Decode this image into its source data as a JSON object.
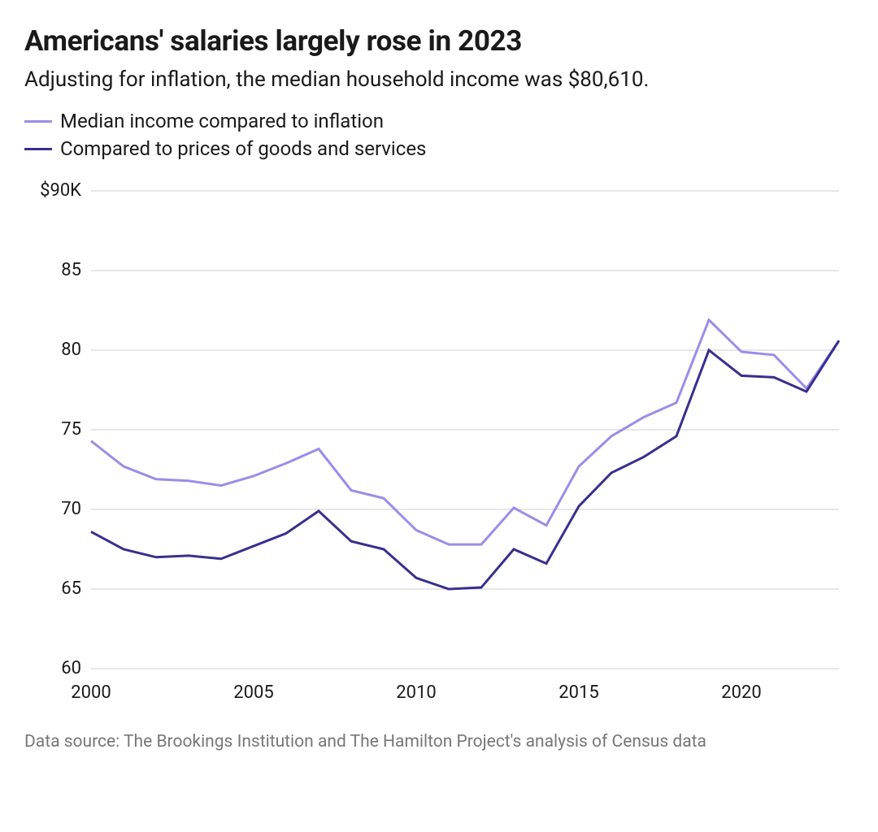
{
  "title": "Americans' salaries largely rose in 2023",
  "subtitle": "Adjusting for inflation, the median household income was $80,610.",
  "source": "Data source: The Brookings Institution and The Hamilton Project's analysis of Census data",
  "chart": {
    "type": "line",
    "background_color": "#ffffff",
    "grid_color": "#cfcfcf",
    "text_color": "#1a1a1a",
    "title_fontsize": 35,
    "subtitle_fontsize": 26,
    "tick_fontsize": 22,
    "legend_fontsize": 24,
    "line_width": 3,
    "x": {
      "min": 2000,
      "max": 2023,
      "ticks": [
        2000,
        2005,
        2010,
        2015,
        2020
      ],
      "tick_labels": [
        "2000",
        "2005",
        "2010",
        "2015",
        "2020"
      ]
    },
    "y": {
      "min": 60,
      "max": 90,
      "ticks": [
        60,
        65,
        70,
        75,
        80,
        85,
        90
      ],
      "tick_labels": [
        "60",
        "65",
        "70",
        "75",
        "80",
        "85",
        "$90K"
      ]
    },
    "series": [
      {
        "key": "inflation",
        "label": "Median income compared to inflation",
        "color": "#9c8ce8",
        "x": [
          2000,
          2001,
          2002,
          2003,
          2004,
          2005,
          2006,
          2007,
          2008,
          2009,
          2010,
          2011,
          2012,
          2013,
          2014,
          2015,
          2016,
          2017,
          2018,
          2019,
          2020,
          2021,
          2022,
          2023
        ],
        "y": [
          74.3,
          72.7,
          71.9,
          71.8,
          71.5,
          72.1,
          72.9,
          73.8,
          71.2,
          70.7,
          68.7,
          67.8,
          67.8,
          70.1,
          69.0,
          72.7,
          74.6,
          75.8,
          76.7,
          81.9,
          79.9,
          79.7,
          77.6,
          80.6
        ]
      },
      {
        "key": "goods",
        "label": "Compared to prices of goods and services",
        "color": "#36308f",
        "x": [
          2000,
          2001,
          2002,
          2003,
          2004,
          2005,
          2006,
          2007,
          2008,
          2009,
          2010,
          2011,
          2012,
          2013,
          2014,
          2015,
          2016,
          2017,
          2018,
          2019,
          2020,
          2021,
          2022,
          2023
        ],
        "y": [
          68.6,
          67.5,
          67.0,
          67.1,
          66.9,
          67.7,
          68.5,
          69.9,
          68.0,
          67.5,
          65.7,
          65.0,
          65.1,
          67.5,
          66.6,
          70.2,
          72.3,
          73.3,
          74.6,
          80.0,
          78.4,
          78.3,
          77.4,
          80.6
        ]
      }
    ]
  }
}
